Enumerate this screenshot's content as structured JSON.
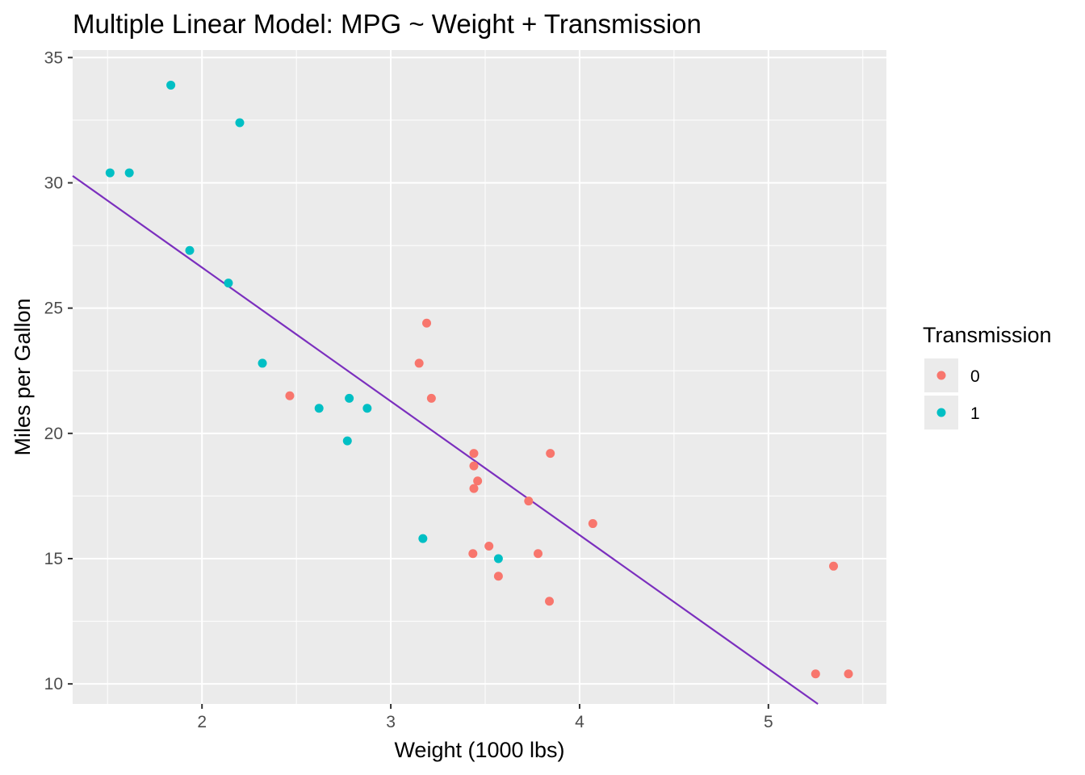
{
  "chart_data": {
    "type": "scatter",
    "title": "Multiple Linear Model: MPG ~ Weight + Transmission",
    "xlabel": "Weight (1000 lbs)",
    "ylabel": "Miles per Gallon",
    "xlim": [
      1.315,
      5.625
    ],
    "ylim": [
      9.2,
      35.3
    ],
    "x_ticks": [
      2,
      3,
      4,
      5
    ],
    "y_ticks": [
      10,
      15,
      20,
      25,
      30,
      35
    ],
    "grid": true,
    "legend": {
      "title": "Transmission",
      "position": "right"
    },
    "series": [
      {
        "name": "0",
        "color": "#F8766D",
        "points": [
          [
            3.215,
            21.4
          ],
          [
            3.44,
            18.7
          ],
          [
            3.46,
            18.1
          ],
          [
            3.57,
            14.3
          ],
          [
            3.19,
            24.4
          ],
          [
            3.15,
            22.8
          ],
          [
            3.44,
            19.2
          ],
          [
            3.44,
            17.8
          ],
          [
            4.07,
            16.4
          ],
          [
            3.73,
            17.3
          ],
          [
            3.78,
            15.2
          ],
          [
            5.25,
            10.4
          ],
          [
            5.424,
            10.4
          ],
          [
            5.345,
            14.7
          ],
          [
            2.465,
            21.5
          ],
          [
            3.52,
            15.5
          ],
          [
            3.435,
            15.2
          ],
          [
            3.84,
            13.3
          ],
          [
            3.845,
            19.2
          ]
        ]
      },
      {
        "name": "1",
        "color": "#00BFC4",
        "points": [
          [
            2.62,
            21.0
          ],
          [
            2.875,
            21.0
          ],
          [
            2.32,
            22.8
          ],
          [
            2.2,
            32.4
          ],
          [
            1.615,
            30.4
          ],
          [
            1.835,
            33.9
          ],
          [
            1.935,
            27.3
          ],
          [
            2.14,
            26.0
          ],
          [
            1.513,
            30.4
          ],
          [
            3.17,
            15.8
          ],
          [
            2.77,
            19.7
          ],
          [
            3.57,
            15.0
          ],
          [
            2.78,
            21.4
          ]
        ]
      }
    ],
    "fit_line": {
      "color": "#7B2FBE",
      "intercept": 37.3,
      "slope": -5.34
    }
  }
}
